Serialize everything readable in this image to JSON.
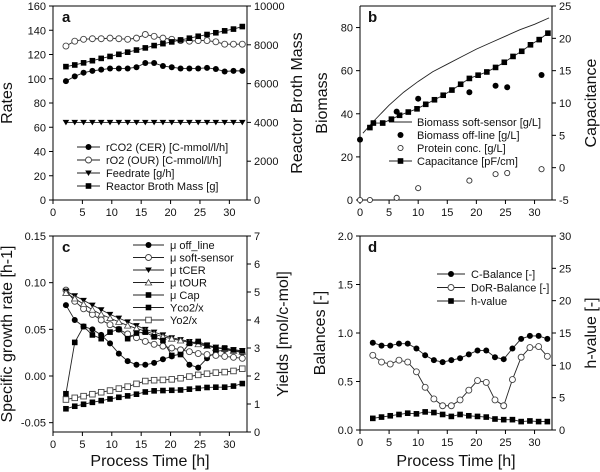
{
  "chart_data": [
    {
      "type": "line",
      "panel_label": "a",
      "xlabel": "",
      "ylabel": "Rates",
      "y2label": "Reactor Broth Mass",
      "xlim": [
        0,
        33
      ],
      "ylim": [
        0,
        160
      ],
      "y2lim": [
        0,
        10000
      ],
      "xticks": [
        "0",
        "5",
        "10",
        "15",
        "20",
        "25",
        "30"
      ],
      "yticks": [
        "0",
        "20",
        "40",
        "60",
        "80",
        "100",
        "120",
        "140",
        "160"
      ],
      "y2ticks": [
        "0",
        "2000",
        "4000",
        "6000",
        "8000",
        "10000"
      ],
      "legend_position": "bottom-left",
      "x": [
        2.2,
        3.7,
        5.2,
        6.7,
        8.2,
        9.7,
        11.2,
        12.7,
        14.2,
        15.7,
        17.2,
        18.7,
        20.2,
        21.7,
        23.2,
        24.7,
        26.2,
        27.7,
        29.2,
        30.7,
        32.2
      ],
      "series": [
        {
          "name": "rCO2 (CER) [C-mmol/l/h]",
          "axis": "left",
          "marker": "circle-filled",
          "line": true,
          "values": [
            98,
            102,
            105,
            106.5,
            107.5,
            108.5,
            108.5,
            108.5,
            109.5,
            113,
            113,
            110.5,
            109.5,
            108.5,
            108.5,
            108.5,
            109,
            108,
            106,
            106.5,
            106.5
          ]
        },
        {
          "name": "rO2 (OUR) [C-mmol/l/h]",
          "axis": "left",
          "marker": "circle-open",
          "line": true,
          "values": [
            127,
            131,
            132.5,
            133,
            133,
            133.5,
            133,
            132.5,
            133.5,
            136.5,
            135,
            133.5,
            132.5,
            131.5,
            131,
            131.5,
            131.5,
            130.5,
            128.5,
            128.5,
            128.5
          ]
        },
        {
          "name": "Feedrate [g/h]",
          "axis": "left",
          "marker": "triangle-down",
          "line": true,
          "values": [
            64,
            64,
            64,
            64,
            64,
            64,
            64,
            64,
            64,
            64,
            64,
            64,
            64,
            64,
            64,
            64,
            64,
            64,
            64,
            64,
            64
          ]
        },
        {
          "name": "Reactor Broth Mass [g]",
          "axis": "right",
          "marker": "square-filled",
          "line": true,
          "values": [
            6875,
            6960,
            7070,
            7180,
            7300,
            7400,
            7510,
            7620,
            7730,
            7840,
            7960,
            8060,
            8150,
            8250,
            8340,
            8440,
            8530,
            8620,
            8720,
            8810,
            8940
          ]
        }
      ]
    },
    {
      "type": "line",
      "panel_label": "b",
      "xlabel": "",
      "ylabel": "Biomass",
      "y2label": "Capacitance",
      "xlim": [
        0,
        33
      ],
      "ylim": [
        0,
        90
      ],
      "y2lim": [
        -5,
        25
      ],
      "xticks": [
        "0",
        "5",
        "10",
        "15",
        "20",
        "25",
        "30"
      ],
      "yticks": [
        "0",
        "20",
        "40",
        "60",
        "80"
      ],
      "y2ticks": [
        "-5",
        "0",
        "5",
        "10",
        "15",
        "20",
        "25"
      ],
      "legend_position": "center-right",
      "series": [
        {
          "name": "Biomass soft-sensor [g/L]",
          "axis": "left",
          "marker": "none",
          "line": true,
          "x": [
            0.5,
            2.5,
            5,
            7.5,
            10,
            12.5,
            15,
            17.5,
            20,
            22.5,
            25,
            27.5,
            30,
            32.5
          ],
          "values": [
            31,
            37,
            44,
            50,
            55,
            59.5,
            63,
            66.5,
            70,
            73,
            76,
            79,
            81.5,
            84.5
          ]
        },
        {
          "name": "Biomass off-line [g/L]",
          "axis": "left",
          "marker": "circle-filled",
          "line": false,
          "x": [
            0,
            6.3,
            10,
            18.8,
            23.3,
            25.3,
            31.2
          ],
          "values": [
            28,
            41,
            47,
            50,
            53,
            52.3,
            58
          ]
        },
        {
          "name": "Protein conc. [g/L]",
          "axis": "left",
          "marker": "circle-open-small",
          "line": false,
          "x": [
            0,
            1.7,
            6.3,
            10,
            18.8,
            23.3,
            25.3,
            31.2
          ],
          "values": [
            0,
            0,
            1,
            5.5,
            9,
            12,
            12.5,
            14.3
          ]
        },
        {
          "name": "Capacitance [pF/cm]",
          "axis": "right",
          "marker": "square-filled",
          "line": true,
          "x": [
            1.7,
            2.3,
            3.9,
            5.4,
            6.8,
            8.3,
            9.8,
            11.3,
            12.8,
            14.3,
            15.8,
            17.3,
            18.8,
            20.3,
            21.8,
            23.3,
            24.8,
            26.3,
            27.8,
            29.3,
            30.8,
            32.3
          ],
          "values": [
            6.2,
            6.9,
            6.9,
            7.5,
            8.1,
            8.6,
            9.1,
            9.8,
            10.5,
            11.2,
            12,
            12.9,
            13.8,
            14.3,
            14.8,
            15.5,
            16.3,
            17.2,
            18,
            19,
            19.8,
            20.8
          ]
        }
      ]
    },
    {
      "type": "line",
      "panel_label": "c",
      "xlabel": "Process Time [h]",
      "ylabel": "Specific growth rate [h-1]",
      "y2label": "Yields [mol/c-mol]",
      "xlim": [
        0,
        33
      ],
      "ylim": [
        -0.06,
        0.15
      ],
      "y2lim": [
        0,
        7
      ],
      "xticks": [
        "0",
        "5",
        "10",
        "15",
        "20",
        "25",
        "30"
      ],
      "yticks": [
        "-0.05",
        "0.00",
        "0.05",
        "0.10",
        "0.15"
      ],
      "y2ticks": [
        "0",
        "1",
        "2",
        "3",
        "4",
        "5",
        "6",
        "7"
      ],
      "legend_position": "top-right",
      "x": [
        2.2,
        3.7,
        5.2,
        6.7,
        8.2,
        9.7,
        11.2,
        12.7,
        14.2,
        15.7,
        17.2,
        18.7,
        20.2,
        21.7,
        23.2,
        24.7,
        26.2,
        27.7,
        29.2,
        30.7,
        32.2
      ],
      "series": [
        {
          "name": "μ off_line",
          "axis": "left",
          "marker": "circle-filled",
          "line": true,
          "values": [
            0.076,
            0.06,
            0.053,
            0.05,
            0.044,
            0.035,
            0.024,
            0.016,
            0.012,
            0.012,
            0.014,
            0.018,
            0.021,
            0.024,
            0.012,
            0.009,
            0.019,
            0.026,
            0.028,
            0.027,
            0.025
          ]
        },
        {
          "name": "μ soft-sensor",
          "axis": "left",
          "marker": "circle-open",
          "line": true,
          "values": [
            0.092,
            0.08,
            0.072,
            0.066,
            0.06,
            0.055,
            0.05,
            0.045,
            0.041,
            0.037,
            0.034,
            0.032,
            0.03,
            0.028,
            0.026,
            0.024,
            0.023,
            0.022,
            0.021,
            0.02,
            0.019
          ]
        },
        {
          "name": "μ tCER",
          "axis": "left",
          "marker": "triangle-down",
          "line": true,
          "values": [
            0.091,
            0.086,
            0.081,
            0.076,
            0.071,
            0.066,
            0.062,
            0.058,
            0.054,
            0.05,
            0.047,
            0.044,
            0.041,
            0.039,
            0.037,
            0.035,
            0.033,
            0.031,
            0.029,
            0.028,
            0.027
          ]
        },
        {
          "name": "μ tOUR",
          "axis": "left",
          "marker": "triangle-up-open",
          "line": true,
          "values": [
            0.089,
            0.083,
            0.077,
            0.071,
            0.066,
            0.062,
            0.058,
            0.054,
            0.051,
            0.048,
            0.045,
            0.042,
            0.04,
            0.038,
            0.036,
            0.034,
            0.032,
            0.03,
            0.029,
            0.027,
            0.026
          ]
        },
        {
          "name": "μ Cap",
          "axis": "left",
          "marker": "square-filled",
          "line": true,
          "values": [
            -0.019,
            0.036,
            0.053,
            0.044,
            0.04,
            0.047,
            0.05,
            0.04,
            0.046,
            0.047,
            0.042,
            0.038,
            0.022,
            0.023,
            0.035,
            0.037,
            0.033,
            0.03,
            0.03,
            0.028,
            0.027
          ]
        },
        {
          "name": "Yco2/x",
          "axis": "right",
          "marker": "square-filled",
          "line": true,
          "values": [
            0.83,
            0.92,
            0.99,
            1.06,
            1.12,
            1.18,
            1.24,
            1.29,
            1.35,
            1.43,
            1.47,
            1.48,
            1.49,
            1.5,
            1.53,
            1.56,
            1.59,
            1.6,
            1.6,
            1.64,
            1.73
          ]
        },
        {
          "name": "Yo2/x",
          "axis": "right",
          "marker": "square-open",
          "line": true,
          "values": [
            1.16,
            1.22,
            1.28,
            1.35,
            1.42,
            1.48,
            1.55,
            1.62,
            1.72,
            1.82,
            1.85,
            1.86,
            1.88,
            1.92,
            1.98,
            2.04,
            2.08,
            2.12,
            2.14,
            2.18,
            2.26
          ]
        }
      ]
    },
    {
      "type": "line",
      "panel_label": "d",
      "xlabel": "Process Time [h]",
      "ylabel": "Balances [-]",
      "y2label": "h-value [-]",
      "xlim": [
        0,
        33
      ],
      "ylim": [
        0,
        2
      ],
      "y2lim": [
        0,
        30
      ],
      "xticks": [
        "0",
        "5",
        "10",
        "15",
        "20",
        "25",
        "30"
      ],
      "yticks": [
        "0.0",
        "0.5",
        "1.0",
        "1.5",
        "2.0"
      ],
      "y2ticks": [
        "0",
        "5",
        "10",
        "15",
        "20",
        "25",
        "30"
      ],
      "legend_position": "top-right",
      "x": [
        2.2,
        3.7,
        5.2,
        6.7,
        8.2,
        9.7,
        11.2,
        12.7,
        14.2,
        15.7,
        17.2,
        18.7,
        20.2,
        21.7,
        23.2,
        24.7,
        26.2,
        27.7,
        29.2,
        30.7,
        32.2
      ],
      "series": [
        {
          "name": "C-Balance [-]",
          "axis": "left",
          "marker": "circle-filled",
          "line": true,
          "values": [
            0.9,
            0.87,
            0.87,
            0.89,
            0.89,
            0.84,
            0.77,
            0.72,
            0.7,
            0.72,
            0.74,
            0.78,
            0.82,
            0.82,
            0.75,
            0.73,
            0.84,
            0.94,
            0.97,
            0.97,
            0.94
          ]
        },
        {
          "name": "DoR-Balance [-]",
          "axis": "left",
          "marker": "circle-open",
          "line": true,
          "values": [
            0.77,
            0.7,
            0.68,
            0.72,
            0.7,
            0.6,
            0.44,
            0.32,
            0.25,
            0.25,
            0.31,
            0.41,
            0.51,
            0.49,
            0.31,
            0.25,
            0.52,
            0.75,
            0.85,
            0.86,
            0.76
          ]
        },
        {
          "name": "h-value",
          "axis": "right",
          "marker": "square-filled",
          "line": true,
          "values": [
            1.8,
            2.0,
            2.2,
            2.4,
            2.6,
            2.5,
            2.8,
            2.7,
            2.4,
            2.1,
            2.4,
            2.2,
            2.1,
            2.0,
            1.7,
            1.6,
            1.6,
            1.3,
            1.4,
            1.3,
            1.3
          ]
        }
      ]
    }
  ]
}
